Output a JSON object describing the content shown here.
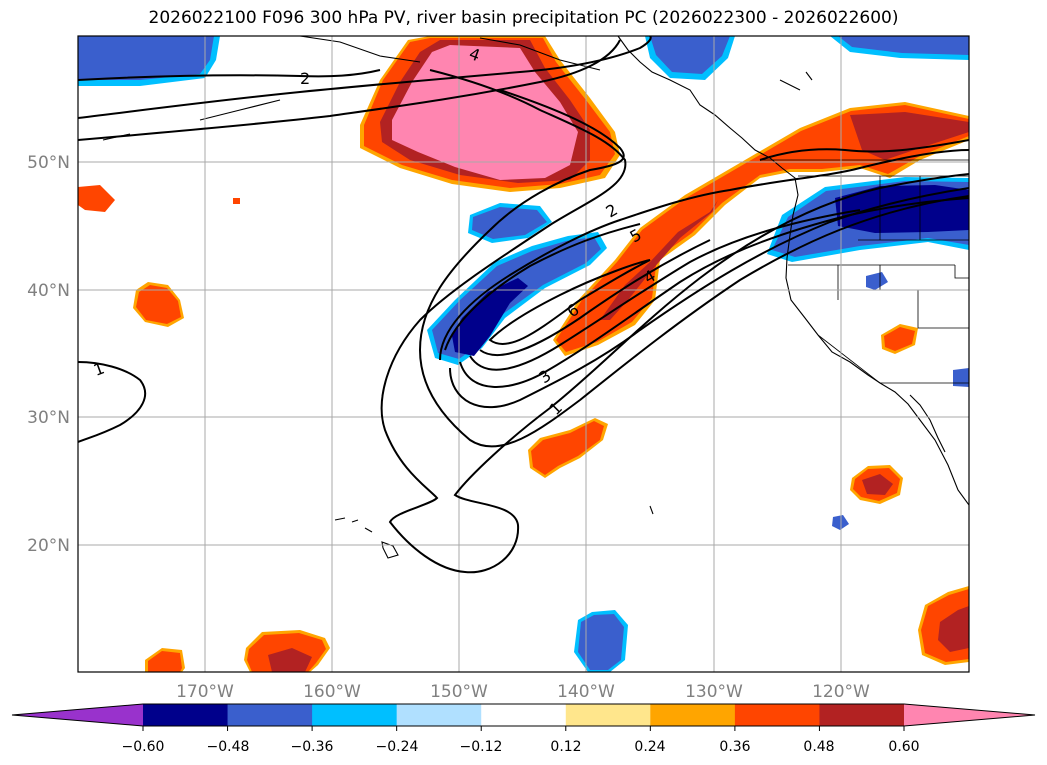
{
  "title": "2026022100 F096 300 hPa PV, river basin precipitation PC (2026022300 - 2026022600)",
  "map": {
    "lat_labels": [
      "50°N",
      "40°N",
      "30°N",
      "20°N"
    ],
    "lon_labels": [
      "170°W",
      "160°W",
      "150°W",
      "140°W",
      "130°W",
      "120°W"
    ],
    "pv_contour_labels": [
      "1",
      "2",
      "3",
      "4",
      "5",
      "6"
    ],
    "label_color": "#808080"
  },
  "colorbar": {
    "ticks": [
      "−0.60",
      "−0.48",
      "−0.36",
      "−0.24",
      "−0.12",
      "0.12",
      "0.24",
      "0.36",
      "0.48",
      "0.60"
    ],
    "colors": [
      "#9932cc",
      "#00008b",
      "#3a5fcd",
      "#00bfff",
      "#b0e0ff",
      "#ffffff",
      "#ffe68c",
      "#ffa500",
      "#ff4500",
      "#b22222",
      "#ff85b0"
    ]
  }
}
